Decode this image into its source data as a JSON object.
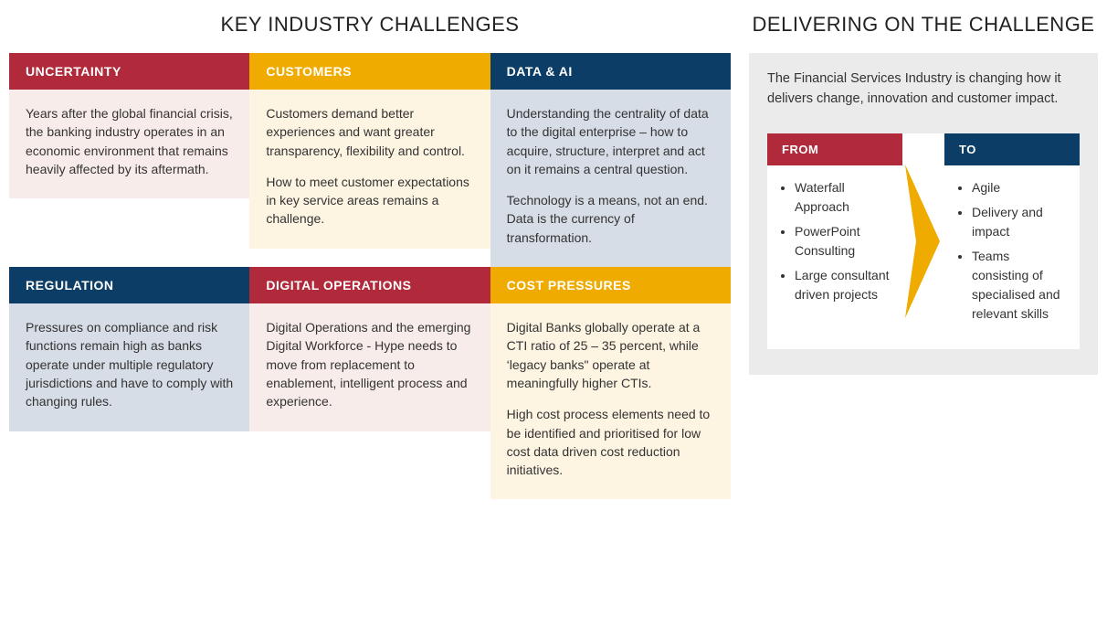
{
  "colors": {
    "red": "#b02a3b",
    "yellow": "#f0ab00",
    "navy": "#0b3d66",
    "body_red_tint": "#f8ecea",
    "body_yellow_tint": "#fdf4e2",
    "body_navy_tint": "#d7dde6",
    "grey_bg": "#ebebeb",
    "text": "#333333"
  },
  "left": {
    "title": "KEY INDUSTRY CHALLENGES",
    "cards": [
      {
        "title": "UNCERTAINTY",
        "header_bg": "#b02a3b",
        "body_bg": "#f8ecea",
        "paragraphs": [
          "Years after the global financial crisis, the banking industry operates in an economic environment that remains heavily affected by its aftermath."
        ]
      },
      {
        "title": "CUSTOMERS",
        "header_bg": "#f0ab00",
        "body_bg": "#fdf4e2",
        "paragraphs": [
          "Customers demand better experiences and want greater transparency, flexibility and control.",
          "How to meet customer expectations in key service areas remains a challenge."
        ]
      },
      {
        "title": "DATA & AI",
        "header_bg": "#0b3d66",
        "body_bg": "#d7dde6",
        "paragraphs": [
          "Understanding the centrality of data to the digital enterprise – how to acquire, structure, interpret and act on it remains a central question.",
          "Technology is a means, not an end. Data is the currency of transformation."
        ]
      },
      {
        "title": "REGULATION",
        "header_bg": "#0b3d66",
        "body_bg": "#d7dde6",
        "paragraphs": [
          "Pressures on compliance and risk functions remain high as banks operate under multiple regulatory jurisdictions and have to comply with changing rules."
        ]
      },
      {
        "title": "DIGITAL OPERATIONS",
        "header_bg": "#b02a3b",
        "body_bg": "#f8ecea",
        "paragraphs": [
          "Digital Operations and the emerging Digital Workforce - Hype needs to move from replacement to enablement, intelligent process and experience."
        ]
      },
      {
        "title": "COST PRESSURES",
        "header_bg": "#f0ab00",
        "body_bg": "#fdf4e2",
        "paragraphs": [
          "Digital Banks globally operate at a CTI ratio of 25 – 35 percent, while ‘legacy banks\" operate at meaningfully higher CTIs.",
          "High cost process elements need to be identified and prioritised for low cost data driven cost reduction initiatives."
        ]
      }
    ]
  },
  "right": {
    "title": "DELIVERING ON THE CHALLENGE",
    "intro": "The Financial Services Industry is changing how it delivers change, innovation and customer impact.",
    "from": {
      "label": "FROM",
      "header_bg": "#b02a3b",
      "items": [
        "Waterfall Approach",
        "PowerPoint Consulting",
        "Large consultant driven projects"
      ]
    },
    "arrow_color": "#f0ab00",
    "to": {
      "label": "TO",
      "header_bg": "#0b3d66",
      "items": [
        "Agile",
        "Delivery and impact",
        "Teams consisting of specialised and relevant skills"
      ]
    }
  }
}
